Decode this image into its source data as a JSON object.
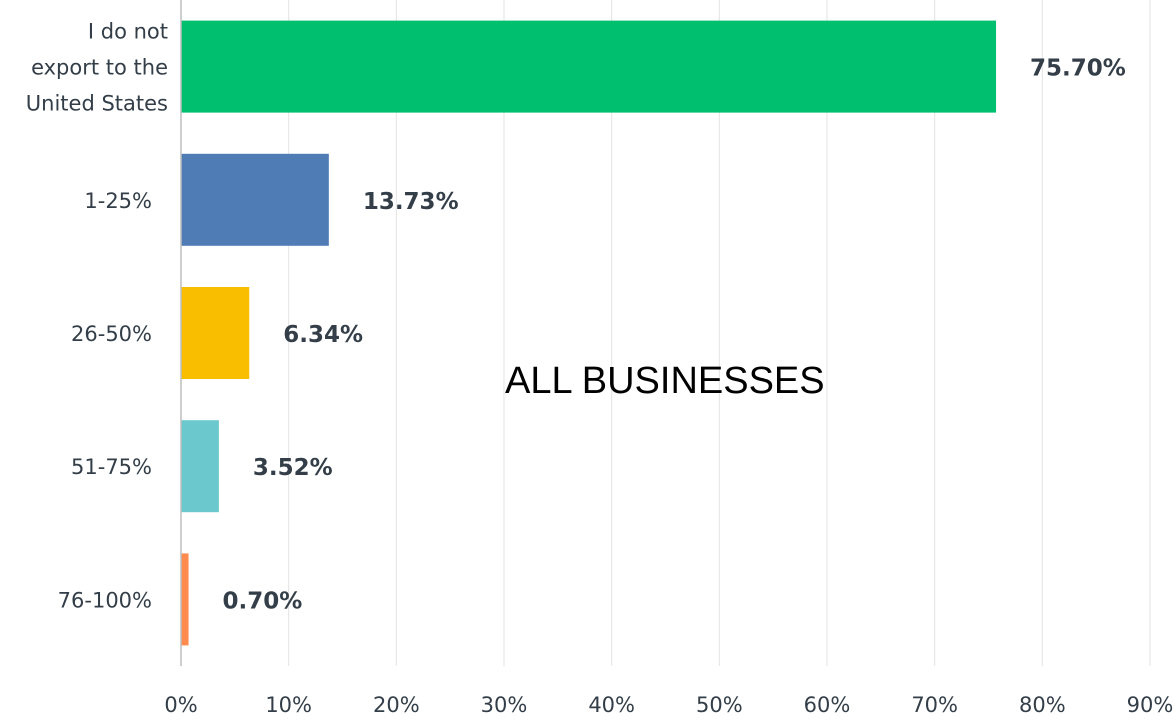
{
  "chart_data": {
    "type": "bar",
    "orientation": "horizontal",
    "annotation": "ALL BUSINESSES",
    "categories": [
      [
        "I do not",
        "export to the",
        "United States"
      ],
      [
        "1-25%"
      ],
      [
        "26-50%"
      ],
      [
        "51-75%"
      ],
      [
        "76-100%"
      ]
    ],
    "values": [
      75.7,
      13.73,
      6.34,
      3.52,
      0.7
    ],
    "value_labels": [
      "75.70%",
      "13.73%",
      "6.34%",
      "3.52%",
      "0.70%"
    ],
    "colors": [
      "#00bf6f",
      "#507cb6",
      "#f9be00",
      "#6bc8cd",
      "#ff8b4f"
    ],
    "xlim": [
      0,
      90
    ],
    "x_ticks": [
      0,
      10,
      20,
      30,
      40,
      50,
      60,
      70,
      80,
      90
    ],
    "x_tick_labels": [
      "0%",
      "10%",
      "20%",
      "30%",
      "40%",
      "50%",
      "60%",
      "70%",
      "80%",
      "90%"
    ],
    "grid": true,
    "legend": false
  }
}
